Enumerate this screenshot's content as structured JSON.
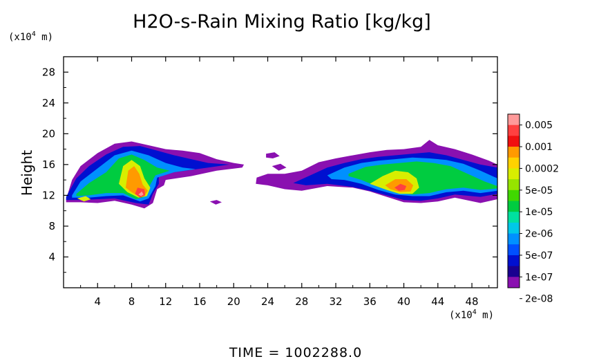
{
  "chart_data": {
    "type": "heatmap",
    "title": "H2O-s-Rain Mixing Ratio [kg/kg]",
    "ylabel": "Height",
    "x_unit": {
      "prefix": "(x10",
      "exp": "4",
      "suffix": " m)"
    },
    "y_unit": {
      "prefix": "(x10",
      "exp": "4",
      "suffix": " m)"
    },
    "xlim": [
      0,
      51
    ],
    "ylim": [
      0,
      30
    ],
    "x_ticks": [
      4,
      8,
      12,
      16,
      20,
      24,
      28,
      32,
      36,
      40,
      44,
      48
    ],
    "y_ticks": [
      4,
      8,
      12,
      16,
      20,
      24,
      28
    ],
    "time_label": "TIME  =  1002288.0",
    "colorbar": {
      "levels": [
        "0.005",
        "0.001",
        "0.0002",
        "5e-05",
        "1e-05",
        "2e-06",
        "5e-07",
        "1e-07",
        "2e-08"
      ],
      "colors": [
        "#ff9a9a",
        "#ff4040",
        "#f01010",
        "#ff9a00",
        "#ffd200",
        "#d8ee00",
        "#96e400",
        "#40d800",
        "#00cc40",
        "#00e0a0",
        "#00c8e8",
        "#0090ff",
        "#0050ff",
        "#0010d0",
        "#1a0090",
        "#8a10b0"
      ]
    },
    "fields": [
      {
        "level": 0,
        "points": [
          [
            0.3,
            11.5
          ],
          [
            1,
            14
          ],
          [
            2,
            15.8
          ],
          [
            4,
            17.5
          ],
          [
            6,
            18.7
          ],
          [
            8,
            19
          ],
          [
            10,
            18.5
          ],
          [
            12,
            18
          ],
          [
            14,
            17.8
          ],
          [
            16,
            17.5
          ],
          [
            18,
            16.7
          ],
          [
            20,
            16.2
          ],
          [
            21.2,
            16
          ],
          [
            21,
            15.6
          ],
          [
            18,
            15.2
          ],
          [
            15,
            14.5
          ],
          [
            12,
            14
          ],
          [
            11.8,
            13.3
          ],
          [
            11,
            12.8
          ],
          [
            10.5,
            11
          ],
          [
            9.5,
            10.3
          ],
          [
            8,
            10.8
          ],
          [
            6,
            11.3
          ],
          [
            4,
            11
          ],
          [
            2,
            11.1
          ],
          [
            0.3,
            11.1
          ]
        ]
      },
      {
        "level": 0,
        "points": [
          [
            22.7,
            14.3
          ],
          [
            24,
            14.8
          ],
          [
            26,
            14.8
          ],
          [
            28,
            15.2
          ],
          [
            30,
            16.3
          ],
          [
            32,
            16.8
          ],
          [
            34,
            17.2
          ],
          [
            36,
            17.6
          ],
          [
            38,
            17.9
          ],
          [
            40,
            18
          ],
          [
            42,
            18.3
          ],
          [
            43,
            19.2
          ],
          [
            44,
            18.5
          ],
          [
            46,
            18
          ],
          [
            48,
            17.3
          ],
          [
            50,
            16.5
          ],
          [
            51,
            16
          ],
          [
            51,
            11.5
          ],
          [
            49,
            11
          ],
          [
            46,
            11.7
          ],
          [
            44,
            11.2
          ],
          [
            42,
            11
          ],
          [
            40,
            11.1
          ],
          [
            38,
            11.8
          ],
          [
            36,
            12.5
          ],
          [
            34,
            13
          ],
          [
            31,
            13.2
          ],
          [
            28,
            12.6
          ],
          [
            26,
            12.8
          ],
          [
            24,
            13.3
          ],
          [
            22.6,
            13.5
          ]
        ]
      },
      {
        "level": 0,
        "points": [
          [
            23.8,
            17.4
          ],
          [
            24.8,
            17.6
          ],
          [
            25.4,
            17.1
          ],
          [
            24.6,
            16.8
          ],
          [
            23.8,
            16.9
          ]
        ]
      },
      {
        "level": 0,
        "points": [
          [
            24.5,
            15.8
          ],
          [
            25.5,
            16.1
          ],
          [
            26.2,
            15.6
          ],
          [
            25.3,
            15.2
          ]
        ]
      },
      {
        "level": 0,
        "points": [
          [
            17.2,
            11.2
          ],
          [
            18,
            11.4
          ],
          [
            18.6,
            11.1
          ],
          [
            17.9,
            10.8
          ]
        ]
      },
      {
        "level": 2,
        "points": [
          [
            0.3,
            11.8
          ],
          [
            1.5,
            14.2
          ],
          [
            3,
            15.8
          ],
          [
            5,
            17.3
          ],
          [
            7,
            18.3
          ],
          [
            9,
            18.4
          ],
          [
            11,
            17.8
          ],
          [
            13,
            17.2
          ],
          [
            15,
            16.7
          ],
          [
            17,
            16.2
          ],
          [
            19.5,
            16
          ],
          [
            17,
            15.6
          ],
          [
            13,
            15
          ],
          [
            11.2,
            14.4
          ],
          [
            11.2,
            13.5
          ],
          [
            10.5,
            12.2
          ],
          [
            10,
            10.8
          ],
          [
            8.5,
            11
          ],
          [
            6,
            11.6
          ],
          [
            4,
            11.5
          ],
          [
            2,
            11.4
          ],
          [
            0.3,
            11.4
          ]
        ]
      },
      {
        "level": 2,
        "points": [
          [
            27,
            13.6
          ],
          [
            29,
            14.6
          ],
          [
            31,
            15.6
          ],
          [
            33,
            16.2
          ],
          [
            35,
            16.7
          ],
          [
            37,
            17
          ],
          [
            39,
            17.2
          ],
          [
            41,
            17.4
          ],
          [
            43,
            17.6
          ],
          [
            45,
            17.2
          ],
          [
            47,
            16.6
          ],
          [
            49,
            16
          ],
          [
            51,
            15.6
          ],
          [
            51,
            12.2
          ],
          [
            49,
            11.8
          ],
          [
            46,
            12.1
          ],
          [
            44,
            11.6
          ],
          [
            42,
            11.3
          ],
          [
            40,
            11.4
          ],
          [
            38,
            12
          ],
          [
            36,
            12.6
          ],
          [
            34,
            13.1
          ],
          [
            31,
            13.5
          ],
          [
            28.5,
            13.3
          ]
        ]
      },
      {
        "level": 4,
        "points": [
          [
            1,
            12
          ],
          [
            2,
            13.8
          ],
          [
            4,
            15.5
          ],
          [
            6,
            17.2
          ],
          [
            8,
            17.8
          ],
          [
            10,
            17.2
          ],
          [
            12,
            16.2
          ],
          [
            14,
            15.6
          ],
          [
            15.5,
            15.4
          ],
          [
            13,
            15
          ],
          [
            11,
            14.3
          ],
          [
            10.8,
            13.2
          ],
          [
            10,
            11.6
          ],
          [
            9,
            11.2
          ],
          [
            7,
            12
          ],
          [
            5,
            11.9
          ],
          [
            3,
            11.7
          ],
          [
            1,
            11.7
          ]
        ]
      },
      {
        "level": 4,
        "points": [
          [
            31,
            14.6
          ],
          [
            33,
            15.6
          ],
          [
            35,
            16.2
          ],
          [
            37,
            16.5
          ],
          [
            39,
            16.7
          ],
          [
            41,
            16.9
          ],
          [
            43,
            16.8
          ],
          [
            45,
            16.6
          ],
          [
            47,
            16.1
          ],
          [
            49,
            15.2
          ],
          [
            51,
            14.2
          ],
          [
            51,
            12.6
          ],
          [
            49,
            12.3
          ],
          [
            47,
            12.6
          ],
          [
            45,
            12.4
          ],
          [
            43,
            11.9
          ],
          [
            41,
            11.9
          ],
          [
            39,
            12.1
          ],
          [
            37,
            12.7
          ],
          [
            35,
            13.5
          ],
          [
            33,
            14
          ],
          [
            31.5,
            14.1
          ]
        ]
      },
      {
        "level": 7,
        "points": [
          [
            1.5,
            12.2
          ],
          [
            3,
            13.6
          ],
          [
            5,
            15
          ],
          [
            6.5,
            16.8
          ],
          [
            8,
            17.3
          ],
          [
            9.5,
            16.6
          ],
          [
            11,
            15.6
          ],
          [
            12.5,
            15.2
          ],
          [
            10.8,
            14.6
          ],
          [
            10.2,
            13.4
          ],
          [
            9.5,
            11.8
          ],
          [
            8.5,
            11.5
          ],
          [
            7,
            12.3
          ],
          [
            5,
            12.3
          ],
          [
            3,
            12
          ],
          [
            1.5,
            11.9
          ]
        ]
      },
      {
        "level": 7,
        "points": [
          [
            33.5,
            14.8
          ],
          [
            35.5,
            15.7
          ],
          [
            37.5,
            16
          ],
          [
            39.5,
            16.2
          ],
          [
            41.5,
            16.4
          ],
          [
            43.5,
            16.2
          ],
          [
            45.5,
            15.8
          ],
          [
            47.5,
            14.8
          ],
          [
            49.5,
            13.8
          ],
          [
            51,
            13.2
          ],
          [
            51,
            12.9
          ],
          [
            49,
            12.7
          ],
          [
            47,
            13
          ],
          [
            45,
            12.8
          ],
          [
            43,
            12.3
          ],
          [
            41,
            12.1
          ],
          [
            39,
            12.4
          ],
          [
            37,
            13.1
          ],
          [
            35,
            14
          ],
          [
            33.5,
            14.5
          ]
        ]
      },
      {
        "level": 10,
        "points": [
          [
            6.5,
            13.5
          ],
          [
            7,
            15.8
          ],
          [
            8,
            16.6
          ],
          [
            9,
            15.8
          ],
          [
            9.5,
            14.2
          ],
          [
            10.2,
            13
          ],
          [
            9.8,
            11.9
          ],
          [
            8.8,
            11.7
          ],
          [
            7.5,
            12.4
          ]
        ]
      },
      {
        "level": 10,
        "points": [
          [
            36,
            13.5
          ],
          [
            37.5,
            14.5
          ],
          [
            39,
            15.2
          ],
          [
            40.5,
            15
          ],
          [
            41.5,
            14.2
          ],
          [
            41.8,
            13
          ],
          [
            41,
            12.2
          ],
          [
            39.5,
            12.2
          ],
          [
            38,
            12.7
          ]
        ]
      },
      {
        "level": 10,
        "points": [
          [
            1.6,
            11.6
          ],
          [
            2.6,
            11.9
          ],
          [
            3.2,
            11.5
          ],
          [
            2.4,
            11.2
          ]
        ]
      },
      {
        "level": 12,
        "points": [
          [
            7.3,
            13
          ],
          [
            7.6,
            15.2
          ],
          [
            8.3,
            15.8
          ],
          [
            8.9,
            14.8
          ],
          [
            9.3,
            13.4
          ],
          [
            9.9,
            12.6
          ],
          [
            9.5,
            11.9
          ],
          [
            8.8,
            11.9
          ],
          [
            8,
            12.4
          ]
        ]
      },
      {
        "level": 12,
        "points": [
          [
            37.8,
            13.3
          ],
          [
            39,
            14.1
          ],
          [
            40.3,
            14.1
          ],
          [
            41.1,
            13.3
          ],
          [
            40.8,
            12.5
          ],
          [
            39.6,
            12.4
          ],
          [
            38.4,
            12.8
          ]
        ]
      },
      {
        "level": 14,
        "points": [
          [
            8.4,
            12.2
          ],
          [
            8.7,
            13
          ],
          [
            9.5,
            12.8
          ],
          [
            9.6,
            12
          ],
          [
            9,
            11.7
          ]
        ]
      },
      {
        "level": 14,
        "points": [
          [
            38.9,
            13
          ],
          [
            39.6,
            13.5
          ],
          [
            40.3,
            13.2
          ],
          [
            40.1,
            12.7
          ],
          [
            39.4,
            12.6
          ]
        ]
      },
      {
        "level": 15,
        "points": [
          [
            8.8,
            12.1
          ],
          [
            9.2,
            12.5
          ],
          [
            9.4,
            12.1
          ],
          [
            9.1,
            11.9
          ]
        ]
      }
    ]
  }
}
